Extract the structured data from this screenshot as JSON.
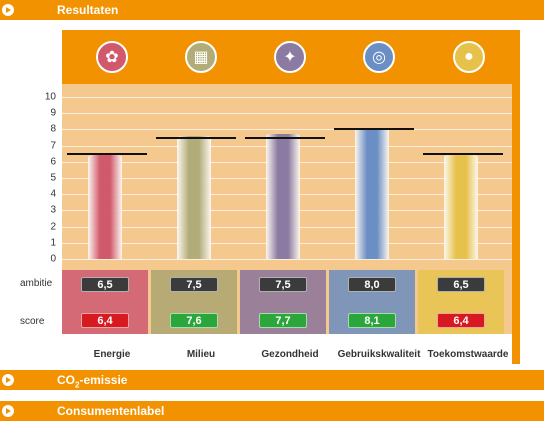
{
  "headers": {
    "results": "Resultaten",
    "co2_prefix": "CO",
    "co2_sub": "2",
    "co2_suffix": "-emissie",
    "consumer": "Consumentenlabel"
  },
  "row_labels": {
    "ambition": "ambitie",
    "score": "score"
  },
  "chart_data": {
    "type": "bar",
    "categories": [
      "Energie",
      "Milieu",
      "Gezondheid",
      "Gebruikskwaliteit",
      "Toekomstwaarde"
    ],
    "values": [
      6.4,
      7.6,
      7.7,
      8.1,
      6.4
    ],
    "ambition": [
      6.5,
      7.5,
      7.5,
      8.0,
      6.5
    ],
    "value_labels": [
      "6,4",
      "7,6",
      "7,7",
      "8,1",
      "6,4"
    ],
    "ambition_labels": [
      "6,5",
      "7,5",
      "7,5",
      "8,0",
      "6,5"
    ],
    "score_status": [
      "red",
      "green",
      "green",
      "green",
      "red"
    ],
    "ylim": [
      0,
      10
    ],
    "yticks": [
      "0",
      "1",
      "2",
      "3",
      "4",
      "5",
      "6",
      "7",
      "8",
      "9",
      "10"
    ]
  },
  "colors": {
    "accent": "#f39200",
    "panel_bg": "#f5c88d",
    "score_red": "#d71920",
    "score_green": "#2aa63a",
    "ambition_dark": "#3b3b3b",
    "bar_colors": [
      "#d05a6c",
      "#b2ac79",
      "#8b7aa1",
      "#6b8fc5",
      "#e7c24b"
    ],
    "metric_bg": [
      "#d46a76",
      "#b8aa74",
      "#9a8199",
      "#8096b8",
      "#e9c457"
    ]
  },
  "icons": [
    "energy-icon",
    "environment-icon",
    "health-icon",
    "usability-icon",
    "future-icon"
  ]
}
